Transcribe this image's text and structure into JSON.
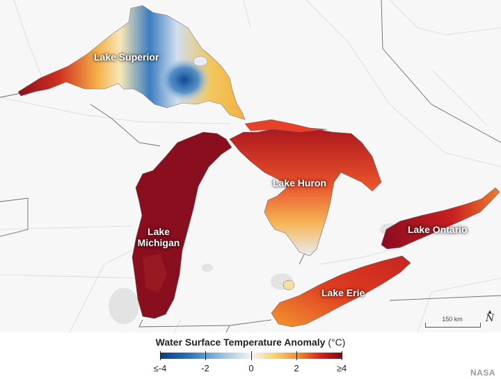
{
  "map": {
    "lakes": [
      {
        "id": "superior",
        "label": "Lake Superior"
      },
      {
        "id": "michigan",
        "label": "Lake Michigan"
      },
      {
        "id": "huron",
        "label": "Lake Huron"
      },
      {
        "id": "erie",
        "label": "Lake Erie"
      },
      {
        "id": "ontario",
        "label": "Lake Ontario"
      }
    ],
    "scale_label": "150 km",
    "north_label": "N"
  },
  "legend": {
    "title": "Water Surface Temperature Anomaly",
    "unit": "(°C)",
    "ticks": [
      "≤-4",
      "-2",
      "0",
      "2",
      "≥4"
    ],
    "colors": [
      "#0b3a80",
      "#2c74b7",
      "#f5f5f5",
      "#f08a2e",
      "#7a0a1a"
    ]
  },
  "credit": "NASA"
}
